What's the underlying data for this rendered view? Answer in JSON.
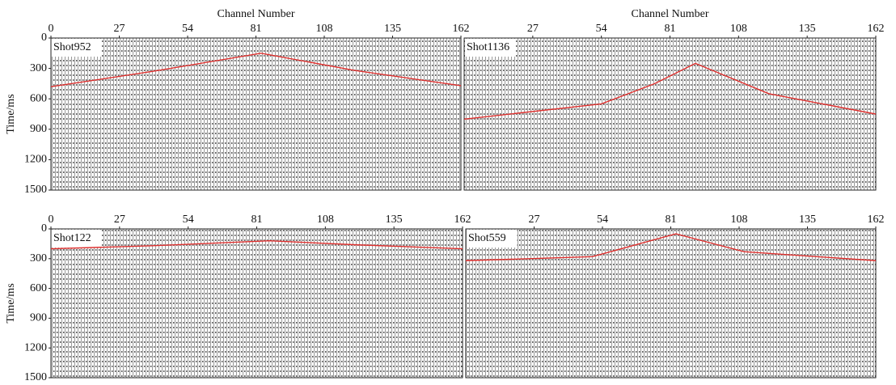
{
  "chart_data": [
    {
      "type": "line",
      "title": "Shot952",
      "xlabel": "Channel Number",
      "ylabel": "Time/ms",
      "x": [
        0,
        40,
        83,
        120,
        162
      ],
      "values": [
        480,
        330,
        150,
        320,
        470
      ],
      "color": "#e0312f",
      "xlim": [
        0,
        162
      ],
      "ylim": [
        1500,
        0
      ],
      "xticks": [
        0,
        27,
        54,
        81,
        108,
        135,
        162
      ],
      "yticks": [
        0,
        300,
        600,
        900,
        1200,
        1500
      ]
    },
    {
      "type": "line",
      "title": "Shot1136",
      "xlabel": "Channel Number",
      "x": [
        0,
        54,
        75,
        91,
        120,
        162
      ],
      "values": [
        800,
        650,
        450,
        250,
        550,
        750
      ],
      "color": "#e0312f",
      "xlim": [
        0,
        162
      ],
      "ylim": [
        1500,
        0
      ],
      "xticks": [
        27,
        54,
        81,
        108,
        135,
        162
      ]
    },
    {
      "type": "line",
      "title": "Shot122",
      "ylabel": "Time/ms",
      "x": [
        0,
        40,
        86,
        120,
        162
      ],
      "values": [
        200,
        170,
        120,
        160,
        200
      ],
      "color": "#e0312f",
      "xlim": [
        0,
        162
      ],
      "ylim": [
        1500,
        0
      ],
      "xticks": [
        0,
        27,
        54,
        81,
        108,
        135,
        162
      ],
      "yticks": [
        0,
        300,
        600,
        900,
        1200,
        1500
      ]
    },
    {
      "type": "line",
      "title": "Shot559",
      "x": [
        0,
        50,
        83,
        110,
        162
      ],
      "values": [
        320,
        280,
        50,
        230,
        320
      ],
      "color": "#e0312f",
      "xlim": [
        0,
        162
      ],
      "ylim": [
        1500,
        0
      ],
      "xticks": [
        27,
        54,
        81,
        108,
        135,
        162
      ]
    }
  ]
}
